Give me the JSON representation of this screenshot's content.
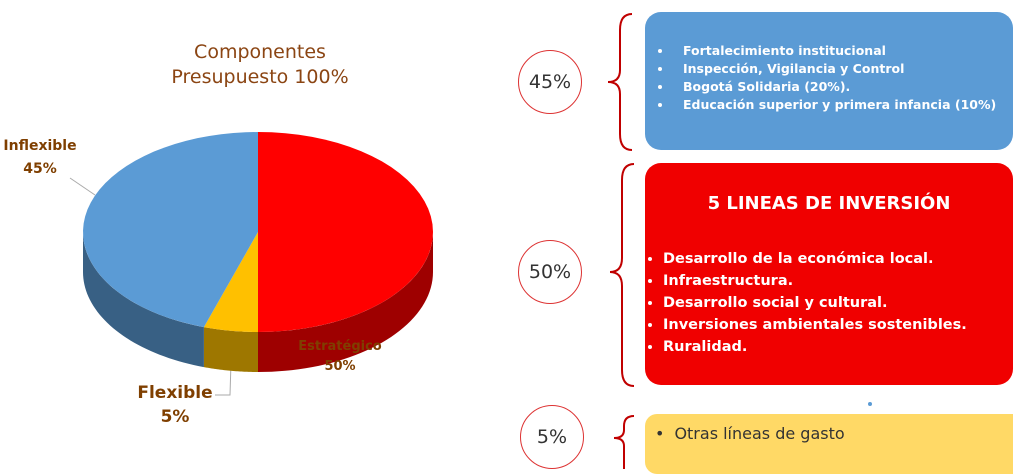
{
  "chart_data": {
    "type": "pie",
    "title": "Componentes Presupuesto 100%",
    "categories": [
      "Inflexible",
      "Flexible",
      "Estratégico"
    ],
    "values": [
      45,
      5,
      50
    ],
    "value_labels": [
      "45%",
      "5%",
      "50%"
    ],
    "colors": [
      "#5b9bd5",
      "#ffc000",
      "#ff0000"
    ]
  },
  "panels": [
    {
      "percent": "45%",
      "items": [
        "Fortalecimiento institucional",
        "Inspección, Vigilancia y Control",
        "Bogotá Solidaria (20%).",
        "Educación superior y primera infancia (10%)"
      ]
    },
    {
      "percent": "50%",
      "heading": "5 LINEAS DE INVERSIÓN",
      "items": [
        "Desarrollo de la económica local.",
        "Infraestructura.",
        "Desarrollo social y cultural.",
        "Inversiones ambientales sostenibles.",
        "Ruralidad."
      ]
    },
    {
      "percent": "5%",
      "items": [
        "Otras líneas de gasto"
      ]
    }
  ]
}
